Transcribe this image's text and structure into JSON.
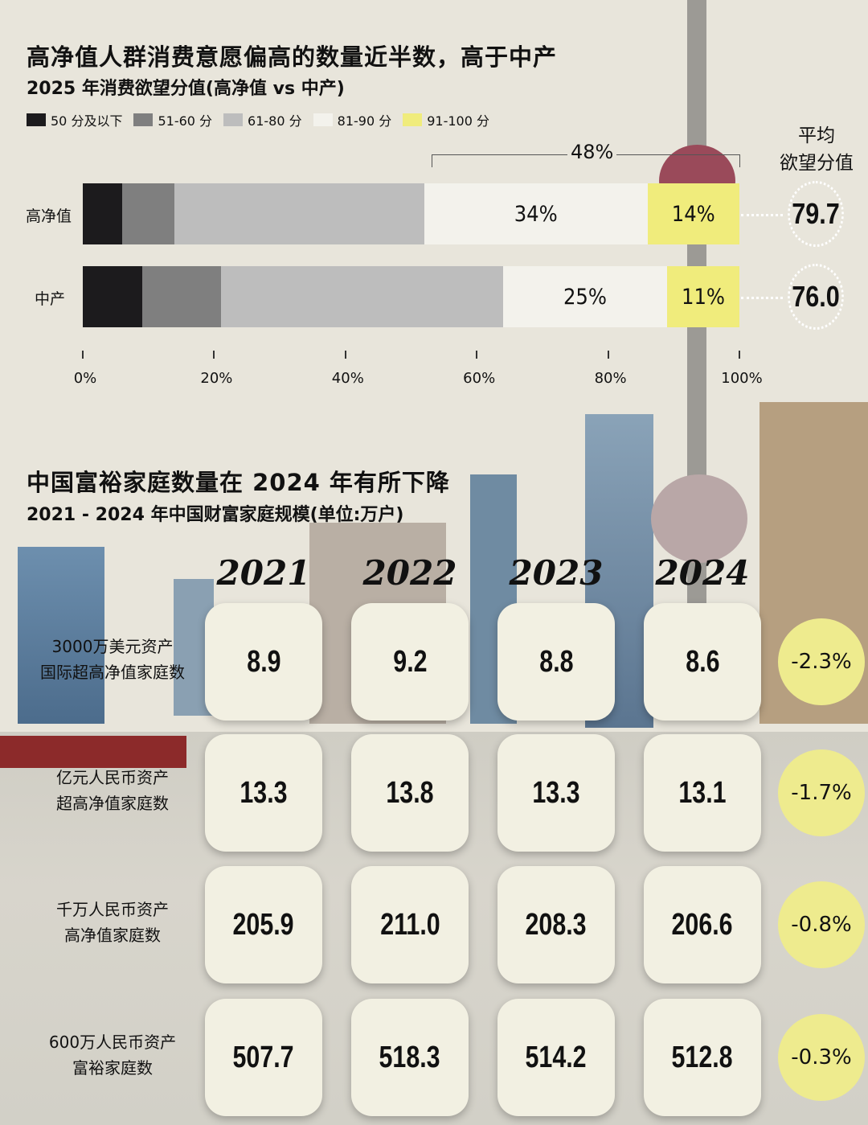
{
  "top": {
    "title": "高净值人群消费意愿偏高的数量近半数，高于中产",
    "subtitle": "2025 年消费欲望分值(高净值 vs 中产)",
    "avg_header_1": "平均",
    "avg_header_2": "欲望分值",
    "bracket_label": "48%"
  },
  "chart_data": [
    {
      "type": "bar",
      "orientation": "horizontal",
      "stacked": true,
      "title": "2025 年消费欲望分值(高净值 vs 中产)",
      "legend": [
        "50 分及以下",
        "51-60 分",
        "61-80 分",
        "81-90 分",
        "91-100 分"
      ],
      "legend_colors": [
        "#1c1b1d",
        "#7f7f7f",
        "#bdbdbd",
        "#f3f2ec",
        "#f0ec7c"
      ],
      "categories": [
        "高净值",
        "中产"
      ],
      "series": [
        {
          "name": "50 分及以下",
          "values": [
            6,
            9
          ]
        },
        {
          "name": "51-60 分",
          "values": [
            8,
            12
          ]
        },
        {
          "name": "61-80 分",
          "values": [
            38,
            43
          ]
        },
        {
          "name": "81-90 分",
          "values": [
            34,
            25
          ]
        },
        {
          "name": "91-100 分",
          "values": [
            14,
            11
          ]
        }
      ],
      "data_labels": [
        [
          "",
          "",
          "",
          "34%",
          "14%"
        ],
        [
          "",
          "",
          "",
          "25%",
          "11%"
        ]
      ],
      "avg_score": [
        "79.7",
        "76.0"
      ],
      "xlim": [
        0,
        100
      ],
      "xticks": [
        "0%",
        "20%",
        "40%",
        "60%",
        "80%",
        "100%"
      ]
    },
    {
      "type": "table",
      "title": "中国富裕家庭数量在 2024 年有所下降",
      "subtitle": "2021 - 2024 年中国财富家庭规模(单位:万户)",
      "columns": [
        "2021",
        "2022",
        "2023",
        "2024"
      ],
      "rows": [
        {
          "label1": "3000万美元资产",
          "label2": "国际超高净值家庭数",
          "values": [
            "8.9",
            "9.2",
            "8.8",
            "8.6"
          ],
          "change": "-2.3%"
        },
        {
          "label1": "亿元人民币资产",
          "label2": "超高净值家庭数",
          "values": [
            "13.3",
            "13.8",
            "13.3",
            "13.1"
          ],
          "change": "-1.7%"
        },
        {
          "label1": "千万人民币资产",
          "label2": "高净值家庭数",
          "values": [
            "205.9",
            "211.0",
            "208.3",
            "206.6"
          ],
          "change": "-0.8%"
        },
        {
          "label1": "600万人民币资产",
          "label2": "富裕家庭数",
          "values": [
            "507.7",
            "518.3",
            "514.2",
            "512.8"
          ],
          "change": "-0.3%"
        }
      ]
    }
  ]
}
